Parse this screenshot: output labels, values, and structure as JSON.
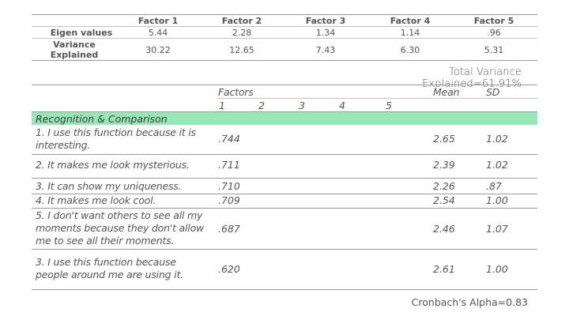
{
  "eigen_table": {
    "factor_headers": [
      "Factor 1",
      "Factor 2",
      "Factor 3",
      "Factor 4",
      "Factor 5"
    ],
    "rows": [
      {
        "label": "Eigen values",
        "values": [
          "5.44",
          "2.28",
          "1.34",
          "1.14",
          ".96"
        ]
      },
      {
        "label": "Variance Explained",
        "values": [
          "30.22",
          "12.65",
          "7.43",
          "6.30",
          "5.31"
        ]
      }
    ]
  },
  "total_variance": "Total Variance Explained=61.91%",
  "factor_table": {
    "factors_label": "Factors",
    "factor_numbers": [
      "1",
      "2",
      "3",
      "4",
      "5"
    ],
    "mean_label": "Mean",
    "sd_label": "SD",
    "section_title": "Recognition & Comparison",
    "items": [
      {
        "text": "1. I use this function because it is interesting.",
        "loading": ".744",
        "mean": "2.65",
        "sd": "1.02"
      },
      {
        "text": "2. It makes me look mysterious.",
        "loading": ".711",
        "mean": "2.39",
        "sd": "1.02"
      },
      {
        "text": "3. It can show my uniqueness.",
        "loading": ".710",
        "mean": "2.26",
        "sd": ".87"
      },
      {
        "text": "4. It makes me look cool.",
        "loading": ".709",
        "mean": "2.54",
        "sd": "1.00"
      },
      {
        "text": "5. I don't want others to see all my moments because they don't allow me to see all their moments.",
        "loading": ".687",
        "mean": "2.46",
        "sd": "1.07"
      },
      {
        "text": "3. I use this function because people around me are using it.",
        "loading": ".620",
        "mean": "2.61",
        "sd": "1.00"
      }
    ]
  },
  "cronbach": "Cronbach's Alpha=0.83",
  "colors": {
    "section_highlight": "#95e8b6",
    "rule": "#9a9a9a"
  }
}
